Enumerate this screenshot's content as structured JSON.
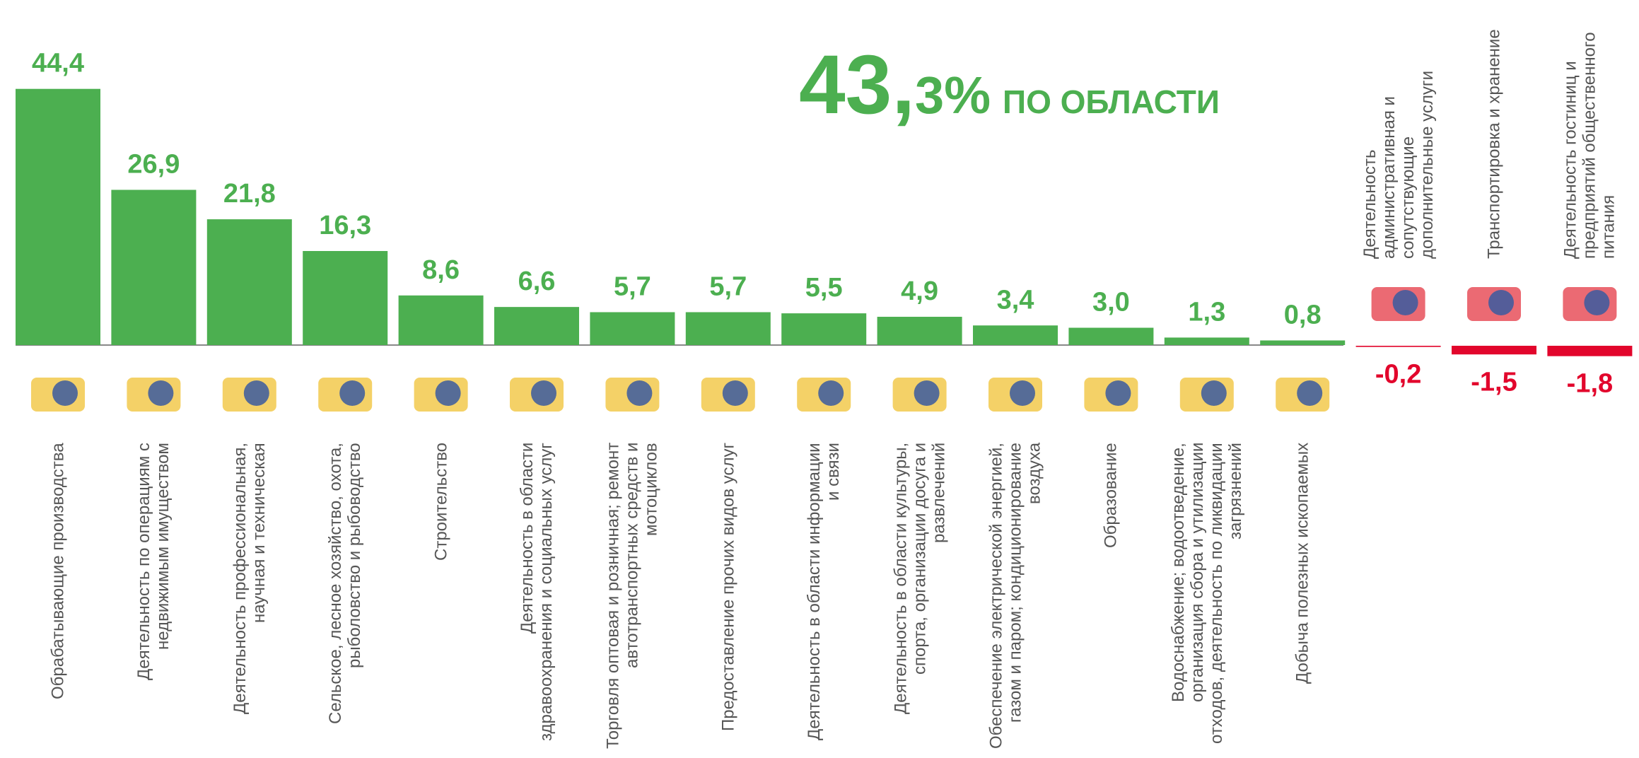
{
  "chart_data": {
    "type": "bar",
    "headline": "43,3%",
    "headline_text": "ПО ОБЛАСТИ",
    "categories": [
      "Обрабатывающие производства",
      "Деятельность по операциям с недвижимым имуществом",
      "Деятельность профессиональная, научная и техническая",
      "Сельское, лесное хозяйство, охота, рыболовство и рыбоводство",
      "Строительство",
      "Деятельность в области здравоохранения и социальных услуг",
      "Торговля оптовая и розничная; ремонт автотранспортных средств и мотоциклов",
      "Предоставление прочих видов услуг",
      "Деятельность в области информации и связи",
      "Деятельность в области культуры, спорта, организации досуга и развлечений",
      "Обеспечение электрической энергией, газом и паром; кондиционирование воздуха",
      "Образование",
      "Водоснабжение; водоотведение, организация сбора и утилизации отходов, деятельность по ликвидации загрязнений",
      "Добыча полезных ископаемых",
      "Деятельность административная и сопутствующие дополнительные услуги",
      "Транспортировка и хранение",
      "Деятельность гостиниц и предприятий общественного питания"
    ],
    "values": [
      44.4,
      26.9,
      21.8,
      16.3,
      8.6,
      6.6,
      5.7,
      5.7,
      5.5,
      4.9,
      3.4,
      3.0,
      1.3,
      0.8,
      -0.2,
      -1.5,
      -1.8
    ],
    "value_labels": [
      "44,4",
      "26,9",
      "21,8",
      "16,3",
      "8,6",
      "6,6",
      "5,7",
      "5,7",
      "5,5",
      "4,9",
      "3,4",
      "3,0",
      "1,3",
      "0,8",
      "-0,2",
      "-1,5",
      "-1,8"
    ],
    "positive_color": "#4caf50",
    "negative_color": "#e2062c"
  }
}
